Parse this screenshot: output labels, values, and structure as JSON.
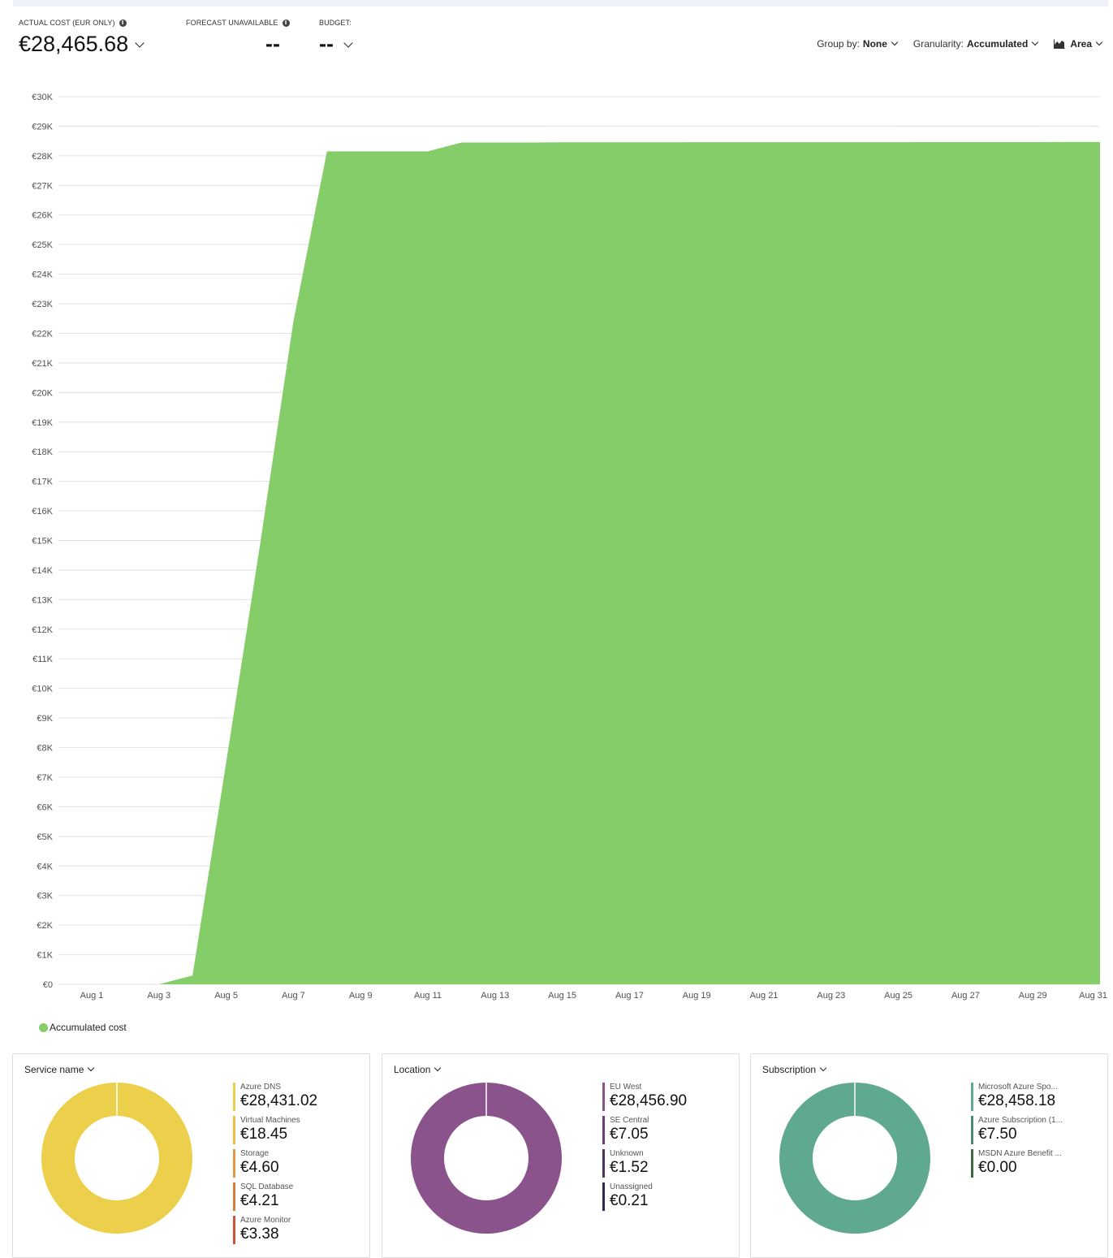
{
  "kpis": {
    "actual": {
      "label": "ACTUAL COST (EUR ONLY)",
      "value": "€28,465.68"
    },
    "forecast": {
      "label": "FORECAST UNAVAILABLE",
      "value": "--"
    },
    "budget": {
      "label": "BUDGET:",
      "value": "--"
    }
  },
  "controls": {
    "group_by": {
      "label": "Group by:",
      "value": "None"
    },
    "granularity": {
      "label": "Granularity:",
      "value": "Accumulated"
    },
    "chart_type": {
      "value": "Area"
    }
  },
  "chart_data": [
    {
      "type": "area",
      "x": [
        "Aug 1",
        "Aug 2",
        "Aug 3",
        "Aug 4",
        "Aug 5",
        "Aug 6",
        "Aug 7",
        "Aug 8",
        "Aug 9",
        "Aug 10",
        "Aug 11",
        "Aug 12",
        "Aug 13",
        "Aug 14",
        "Aug 15",
        "Aug 16",
        "Aug 17",
        "Aug 18",
        "Aug 19",
        "Aug 20",
        "Aug 21",
        "Aug 22",
        "Aug 23",
        "Aug 24",
        "Aug 25",
        "Aug 26",
        "Aug 27",
        "Aug 28",
        "Aug 29",
        "Aug 30",
        "Aug 31"
      ],
      "series": [
        {
          "name": "Accumulated cost",
          "color": "#84cd69",
          "values": [
            0,
            0,
            0,
            300,
            7500,
            14800,
            22400,
            28150,
            28150,
            28150,
            28150,
            28450,
            28450,
            28450,
            28455,
            28455,
            28455,
            28455,
            28458,
            28458,
            28458,
            28460,
            28460,
            28460,
            28461,
            28462,
            28462,
            28463,
            28464,
            28465,
            28465.68
          ]
        }
      ],
      "x_tick_labels": [
        "Aug 1",
        "Aug 3",
        "Aug 5",
        "Aug 7",
        "Aug 9",
        "Aug 11",
        "Aug 13",
        "Aug 15",
        "Aug 17",
        "Aug 19",
        "Aug 21",
        "Aug 23",
        "Aug 25",
        "Aug 27",
        "Aug 29",
        "Aug 31"
      ],
      "y_tick_labels": [
        "€0",
        "€1K",
        "€2K",
        "€3K",
        "€4K",
        "€5K",
        "€6K",
        "€7K",
        "€8K",
        "€9K",
        "€10K",
        "€11K",
        "€12K",
        "€13K",
        "€14K",
        "€15K",
        "€16K",
        "€17K",
        "€18K",
        "€19K",
        "€20K",
        "€21K",
        "€22K",
        "€23K",
        "€24K",
        "€25K",
        "€26K",
        "€27K",
        "€28K",
        "€29K",
        "€30K"
      ],
      "ylim": [
        0,
        30000
      ],
      "grid": true,
      "legend": "bottom-left"
    },
    {
      "type": "pie",
      "title": "Service name",
      "items": [
        {
          "label": "Azure DNS",
          "display": "€28,431.02",
          "value": 28431.02,
          "color": "#ecd04c"
        },
        {
          "label": "Virtual Machines",
          "display": "€18.45",
          "value": 18.45,
          "color": "#ecbf4a"
        },
        {
          "label": "Storage",
          "display": "€4.60",
          "value": 4.6,
          "color": "#e39743"
        },
        {
          "label": "SQL Database",
          "display": "€4.21",
          "value": 4.21,
          "color": "#da7e38"
        },
        {
          "label": "Azure Monitor",
          "display": "€3.38",
          "value": 3.38,
          "color": "#c9553a"
        }
      ]
    },
    {
      "type": "pie",
      "title": "Location",
      "items": [
        {
          "label": "EU West",
          "display": "€28,456.90",
          "value": 28456.9,
          "color": "#8b538c"
        },
        {
          "label": "SE Central",
          "display": "€7.05",
          "value": 7.05,
          "color": "#6b3d7d"
        },
        {
          "label": "Unknown",
          "display": "€1.52",
          "value": 1.52,
          "color": "#4a3366"
        },
        {
          "label": "Unassigned",
          "display": "€0.21",
          "value": 0.21,
          "color": "#2c2a55"
        }
      ]
    },
    {
      "type": "pie",
      "title": "Subscription",
      "items": [
        {
          "label": "Microsoft Azure Spo...",
          "display": "€28,458.18",
          "value": 28458.18,
          "color": "#5faa8f"
        },
        {
          "label": "Azure Subscription (1...",
          "display": "€7.50",
          "value": 7.5,
          "color": "#4a8a73"
        },
        {
          "label": "MSDN Azure Benefit ...",
          "display": "€0.00",
          "value": 0.0,
          "color": "#3c6b3c"
        }
      ]
    }
  ]
}
